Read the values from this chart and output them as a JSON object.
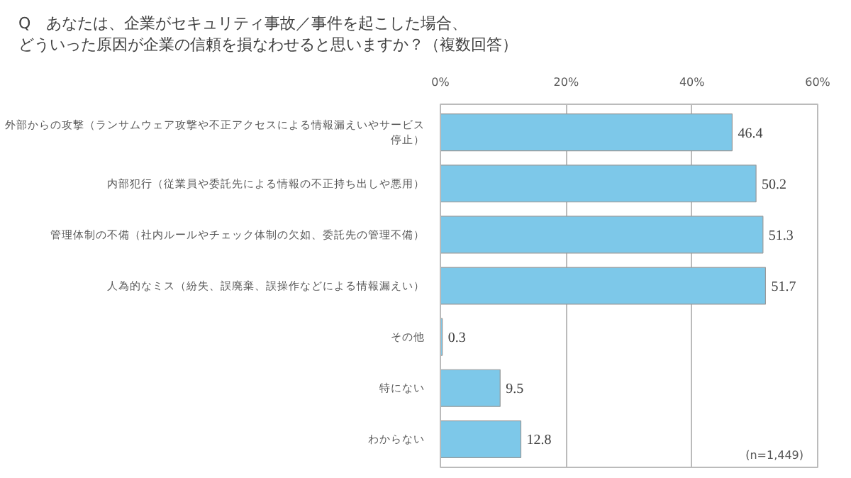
{
  "chart_data": {
    "type": "bar",
    "orientation": "horizontal",
    "title": "Q　あなたは、企業がセキュリティ事故／事件を起こした場合、どういった原因が企業の信頼を損なわせると思いますか？（複数回答）",
    "categories": [
      "外部からの攻撃（ランサムウェア攻撃や不正アクセスによる情報漏えいやサービス停止）",
      "内部犯行（従業員や委託先による情報の不正持ち出しや悪用）",
      "管理体制の不備（社内ルールやチェック体制の欠如、委託先の管理不備）",
      "人為的なミス（紛失、誤廃棄、誤操作などによる情報漏えい）",
      "その他",
      "特にない",
      "わからない"
    ],
    "values": [
      46.4,
      50.2,
      51.3,
      51.7,
      0.3,
      9.5,
      12.8
    ],
    "color": "#7dc8e9",
    "data_labels": true,
    "xlim": [
      0,
      60
    ],
    "xticks": [
      {
        "value": 0,
        "label": "0%"
      },
      {
        "value": 20,
        "label": "20%"
      },
      {
        "value": 40,
        "label": "40%"
      },
      {
        "value": 60,
        "label": "60%"
      }
    ],
    "grid": "x",
    "annotations": [
      "(n=1,449)"
    ]
  }
}
